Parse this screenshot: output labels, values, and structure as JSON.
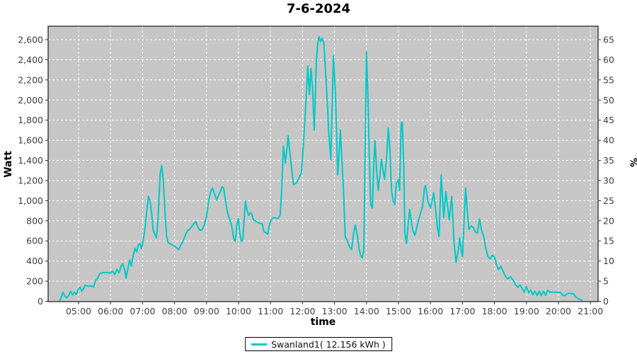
{
  "title": "7-6-2024",
  "legend": {
    "label": "Swanland1( 12.156 kWh )"
  },
  "colors": {
    "series_line": "#00c8c8",
    "plot_background": "#c6c6c6",
    "gridline": "#ffffff",
    "axis": "#2a2a2a",
    "tick_label": "#3f3f3f",
    "page_background": "#ffffff"
  },
  "chart_data": {
    "type": "line",
    "title": "7-6-2024",
    "xlabel": "time",
    "ylabel_left": "Watt",
    "ylabel_right": "%",
    "grid": "white dashed on gray",
    "legend_position": "bottom-center",
    "x_ticks": [
      "05:00",
      "06:00",
      "07:00",
      "08:00",
      "09:00",
      "10:00",
      "11:00",
      "12:00",
      "13:00",
      "14:00",
      "15:00",
      "16:00",
      "17:00",
      "18:00",
      "19:00",
      "20:00",
      "21:00"
    ],
    "y_left": {
      "min": 0,
      "max": 2600,
      "step": 200
    },
    "y_right": {
      "min": 0,
      "max": 65,
      "step": 5
    },
    "series": [
      {
        "name": "Swanland1( 12.156 kWh )",
        "color": "#00c8c8",
        "points": [
          [
            "04:25",
            5
          ],
          [
            "04:28",
            45
          ],
          [
            "04:31",
            90
          ],
          [
            "04:34",
            50
          ],
          [
            "04:38",
            35
          ],
          [
            "04:42",
            60
          ],
          [
            "04:45",
            100
          ],
          [
            "04:49",
            62
          ],
          [
            "04:52",
            90
          ],
          [
            "04:56",
            68
          ],
          [
            "05:00",
            126
          ],
          [
            "05:03",
            140
          ],
          [
            "05:06",
            100
          ],
          [
            "05:09",
            120
          ],
          [
            "05:12",
            160
          ],
          [
            "05:16",
            152
          ],
          [
            "05:20",
            150
          ],
          [
            "05:24",
            153
          ],
          [
            "05:28",
            140
          ],
          [
            "05:32",
            205
          ],
          [
            "05:36",
            232
          ],
          [
            "05:40",
            275
          ],
          [
            "05:45",
            284
          ],
          [
            "05:50",
            286
          ],
          [
            "05:55",
            284
          ],
          [
            "06:00",
            280
          ],
          [
            "06:04",
            300
          ],
          [
            "06:08",
            267
          ],
          [
            "06:12",
            315
          ],
          [
            "06:16",
            282
          ],
          [
            "06:20",
            355
          ],
          [
            "06:23",
            373
          ],
          [
            "06:27",
            300
          ],
          [
            "06:29",
            232
          ],
          [
            "06:33",
            337
          ],
          [
            "06:36",
            408
          ],
          [
            "06:39",
            350
          ],
          [
            "06:43",
            470
          ],
          [
            "06:46",
            525
          ],
          [
            "06:49",
            490
          ],
          [
            "06:52",
            560
          ],
          [
            "06:55",
            573
          ],
          [
            "06:58",
            520
          ],
          [
            "07:01",
            600
          ],
          [
            "07:04",
            700
          ],
          [
            "07:08",
            900
          ],
          [
            "07:11",
            1043
          ],
          [
            "07:14",
            1000
          ],
          [
            "07:17",
            880
          ],
          [
            "07:20",
            700
          ],
          [
            "07:23",
            667
          ],
          [
            "07:26",
            631
          ],
          [
            "07:29",
            800
          ],
          [
            "07:33",
            1266
          ],
          [
            "07:36",
            1349
          ],
          [
            "07:39",
            1200
          ],
          [
            "07:42",
            900
          ],
          [
            "07:45",
            650
          ],
          [
            "07:48",
            584
          ],
          [
            "07:52",
            570
          ],
          [
            "07:56",
            560
          ],
          [
            "08:00",
            545
          ],
          [
            "08:04",
            530
          ],
          [
            "08:08",
            514
          ],
          [
            "08:12",
            560
          ],
          [
            "08:16",
            596
          ],
          [
            "08:20",
            655
          ],
          [
            "08:24",
            700
          ],
          [
            "08:28",
            714
          ],
          [
            "08:32",
            740
          ],
          [
            "08:36",
            770
          ],
          [
            "08:40",
            790
          ],
          [
            "08:44",
            737
          ],
          [
            "08:48",
            702
          ],
          [
            "08:52",
            714
          ],
          [
            "08:56",
            760
          ],
          [
            "09:00",
            843
          ],
          [
            "09:04",
            996
          ],
          [
            "09:08",
            1090
          ],
          [
            "09:11",
            1125
          ],
          [
            "09:15",
            1066
          ],
          [
            "09:19",
            1007
          ],
          [
            "09:23",
            1060
          ],
          [
            "09:26",
            1090
          ],
          [
            "09:29",
            1137
          ],
          [
            "09:32",
            1125
          ],
          [
            "09:36",
            984
          ],
          [
            "09:40",
            866
          ],
          [
            "09:44",
            808
          ],
          [
            "09:48",
            725
          ],
          [
            "09:51",
            620
          ],
          [
            "09:54",
            596
          ],
          [
            "09:57",
            772
          ],
          [
            "10:00",
            820
          ],
          [
            "10:02",
            690
          ],
          [
            "10:05",
            596
          ],
          [
            "10:08",
            608
          ],
          [
            "10:11",
            850
          ],
          [
            "10:13",
            996
          ],
          [
            "10:16",
            900
          ],
          [
            "10:19",
            855
          ],
          [
            "10:22",
            879
          ],
          [
            "10:25",
            867
          ],
          [
            "10:28",
            808
          ],
          [
            "10:32",
            796
          ],
          [
            "10:36",
            784
          ],
          [
            "10:40",
            775
          ],
          [
            "10:44",
            772
          ],
          [
            "10:48",
            690
          ],
          [
            "10:52",
            679
          ],
          [
            "10:55",
            667
          ],
          [
            "10:58",
            761
          ],
          [
            "11:02",
            820
          ],
          [
            "11:06",
            831
          ],
          [
            "11:10",
            828
          ],
          [
            "11:14",
            820
          ],
          [
            "11:18",
            855
          ],
          [
            "11:21",
            1100
          ],
          [
            "11:24",
            1540
          ],
          [
            "11:28",
            1372
          ],
          [
            "11:33",
            1643
          ],
          [
            "11:38",
            1400
          ],
          [
            "11:43",
            1160
          ],
          [
            "11:48",
            1172
          ],
          [
            "11:53",
            1220
          ],
          [
            "11:58",
            1278
          ],
          [
            "12:02",
            1584
          ],
          [
            "12:06",
            1937
          ],
          [
            "12:10",
            2337
          ],
          [
            "12:13",
            2054
          ],
          [
            "12:16",
            2313
          ],
          [
            "12:19",
            2100
          ],
          [
            "12:22",
            1702
          ],
          [
            "12:26",
            2400
          ],
          [
            "12:29",
            2572
          ],
          [
            "12:31",
            2630
          ],
          [
            "12:34",
            2580
          ],
          [
            "12:37",
            2615
          ],
          [
            "12:40",
            2570
          ],
          [
            "12:43",
            2301
          ],
          [
            "12:46",
            2030
          ],
          [
            "12:49",
            1702
          ],
          [
            "12:53",
            1407
          ],
          [
            "12:56",
            2000
          ],
          [
            "12:58",
            2442
          ],
          [
            "13:02",
            2030
          ],
          [
            "13:06",
            1254
          ],
          [
            "13:09",
            1500
          ],
          [
            "13:11",
            1702
          ],
          [
            "13:14",
            1400
          ],
          [
            "13:17",
            1090
          ],
          [
            "13:20",
            643
          ],
          [
            "13:24",
            600
          ],
          [
            "13:28",
            540
          ],
          [
            "13:32",
            513
          ],
          [
            "13:36",
            680
          ],
          [
            "13:39",
            760
          ],
          [
            "13:43",
            650
          ],
          [
            "13:46",
            520
          ],
          [
            "13:49",
            455
          ],
          [
            "13:52",
            431
          ],
          [
            "13:55",
            500
          ],
          [
            "14:00",
            2477
          ],
          [
            "14:03",
            1960
          ],
          [
            "14:05",
            1490
          ],
          [
            "14:08",
            961
          ],
          [
            "14:11",
            926
          ],
          [
            "14:14",
            1400
          ],
          [
            "14:16",
            1596
          ],
          [
            "14:19",
            1300
          ],
          [
            "14:22",
            1102
          ],
          [
            "14:25",
            1250
          ],
          [
            "14:28",
            1407
          ],
          [
            "14:31",
            1300
          ],
          [
            "14:34",
            1208
          ],
          [
            "14:38",
            1450
          ],
          [
            "14:41",
            1725
          ],
          [
            "14:44",
            1500
          ],
          [
            "14:47",
            1100
          ],
          [
            "14:50",
            996
          ],
          [
            "14:53",
            961
          ],
          [
            "14:56",
            1172
          ],
          [
            "15:00",
            1208
          ],
          [
            "15:02",
            1102
          ],
          [
            "15:05",
            1772
          ],
          [
            "15:07",
            1780
          ],
          [
            "15:10",
            1349
          ],
          [
            "15:12",
            678
          ],
          [
            "15:15",
            573
          ],
          [
            "15:18",
            760
          ],
          [
            "15:21",
            914
          ],
          [
            "15:24",
            800
          ],
          [
            "15:27",
            700
          ],
          [
            "15:31",
            655
          ],
          [
            "15:35",
            750
          ],
          [
            "15:40",
            850
          ],
          [
            "15:45",
            937
          ],
          [
            "15:49",
            1137
          ],
          [
            "15:51",
            1149
          ],
          [
            "15:55",
            1000
          ],
          [
            "16:00",
            926
          ],
          [
            "16:03",
            1000
          ],
          [
            "16:06",
            1078
          ],
          [
            "16:10",
            900
          ],
          [
            "16:13",
            725
          ],
          [
            "16:16",
            643
          ],
          [
            "16:20",
            1255
          ],
          [
            "16:23",
            1000
          ],
          [
            "16:25",
            831
          ],
          [
            "16:29",
            1090
          ],
          [
            "16:32",
            950
          ],
          [
            "16:35",
            808
          ],
          [
            "16:38",
            950
          ],
          [
            "16:40",
            1043
          ],
          [
            "16:44",
            596
          ],
          [
            "16:48",
            385
          ],
          [
            "16:52",
            500
          ],
          [
            "16:55",
            631
          ],
          [
            "16:58",
            500
          ],
          [
            "17:00",
            443
          ],
          [
            "17:03",
            800
          ],
          [
            "17:06",
            1125
          ],
          [
            "17:09",
            900
          ],
          [
            "17:12",
            714
          ],
          [
            "17:16",
            749
          ],
          [
            "17:20",
            737
          ],
          [
            "17:24",
            690
          ],
          [
            "17:28",
            678
          ],
          [
            "17:32",
            820
          ],
          [
            "17:36",
            700
          ],
          [
            "17:40",
            643
          ],
          [
            "17:44",
            520
          ],
          [
            "17:48",
            443
          ],
          [
            "17:52",
            420
          ],
          [
            "17:56",
            455
          ],
          [
            "18:00",
            443
          ],
          [
            "18:04",
            360
          ],
          [
            "18:08",
            314
          ],
          [
            "18:12",
            349
          ],
          [
            "18:16",
            300
          ],
          [
            "18:20",
            255
          ],
          [
            "18:25",
            220
          ],
          [
            "18:30",
            243
          ],
          [
            "18:35",
            208
          ],
          [
            "18:40",
            161
          ],
          [
            "18:44",
            137
          ],
          [
            "18:48",
            161
          ],
          [
            "18:52",
            126
          ],
          [
            "18:56",
            90
          ],
          [
            "19:00",
            148
          ],
          [
            "19:04",
            85
          ],
          [
            "19:08",
            112
          ],
          [
            "19:12",
            65
          ],
          [
            "19:16",
            100
          ],
          [
            "19:20",
            58
          ],
          [
            "19:24",
            100
          ],
          [
            "19:28",
            55
          ],
          [
            "19:32",
            100
          ],
          [
            "19:36",
            60
          ],
          [
            "19:40",
            110
          ],
          [
            "19:44",
            90
          ],
          [
            "19:48",
            92
          ],
          [
            "19:52",
            90
          ],
          [
            "19:56",
            90
          ],
          [
            "20:00",
            90
          ],
          [
            "20:04",
            88
          ],
          [
            "20:08",
            60
          ],
          [
            "20:12",
            55
          ],
          [
            "20:16",
            75
          ],
          [
            "20:20",
            79
          ],
          [
            "20:24",
            76
          ],
          [
            "20:28",
            75
          ],
          [
            "20:32",
            45
          ],
          [
            "20:36",
            30
          ],
          [
            "20:40",
            18
          ],
          [
            "20:44",
            8
          ]
        ]
      }
    ]
  }
}
